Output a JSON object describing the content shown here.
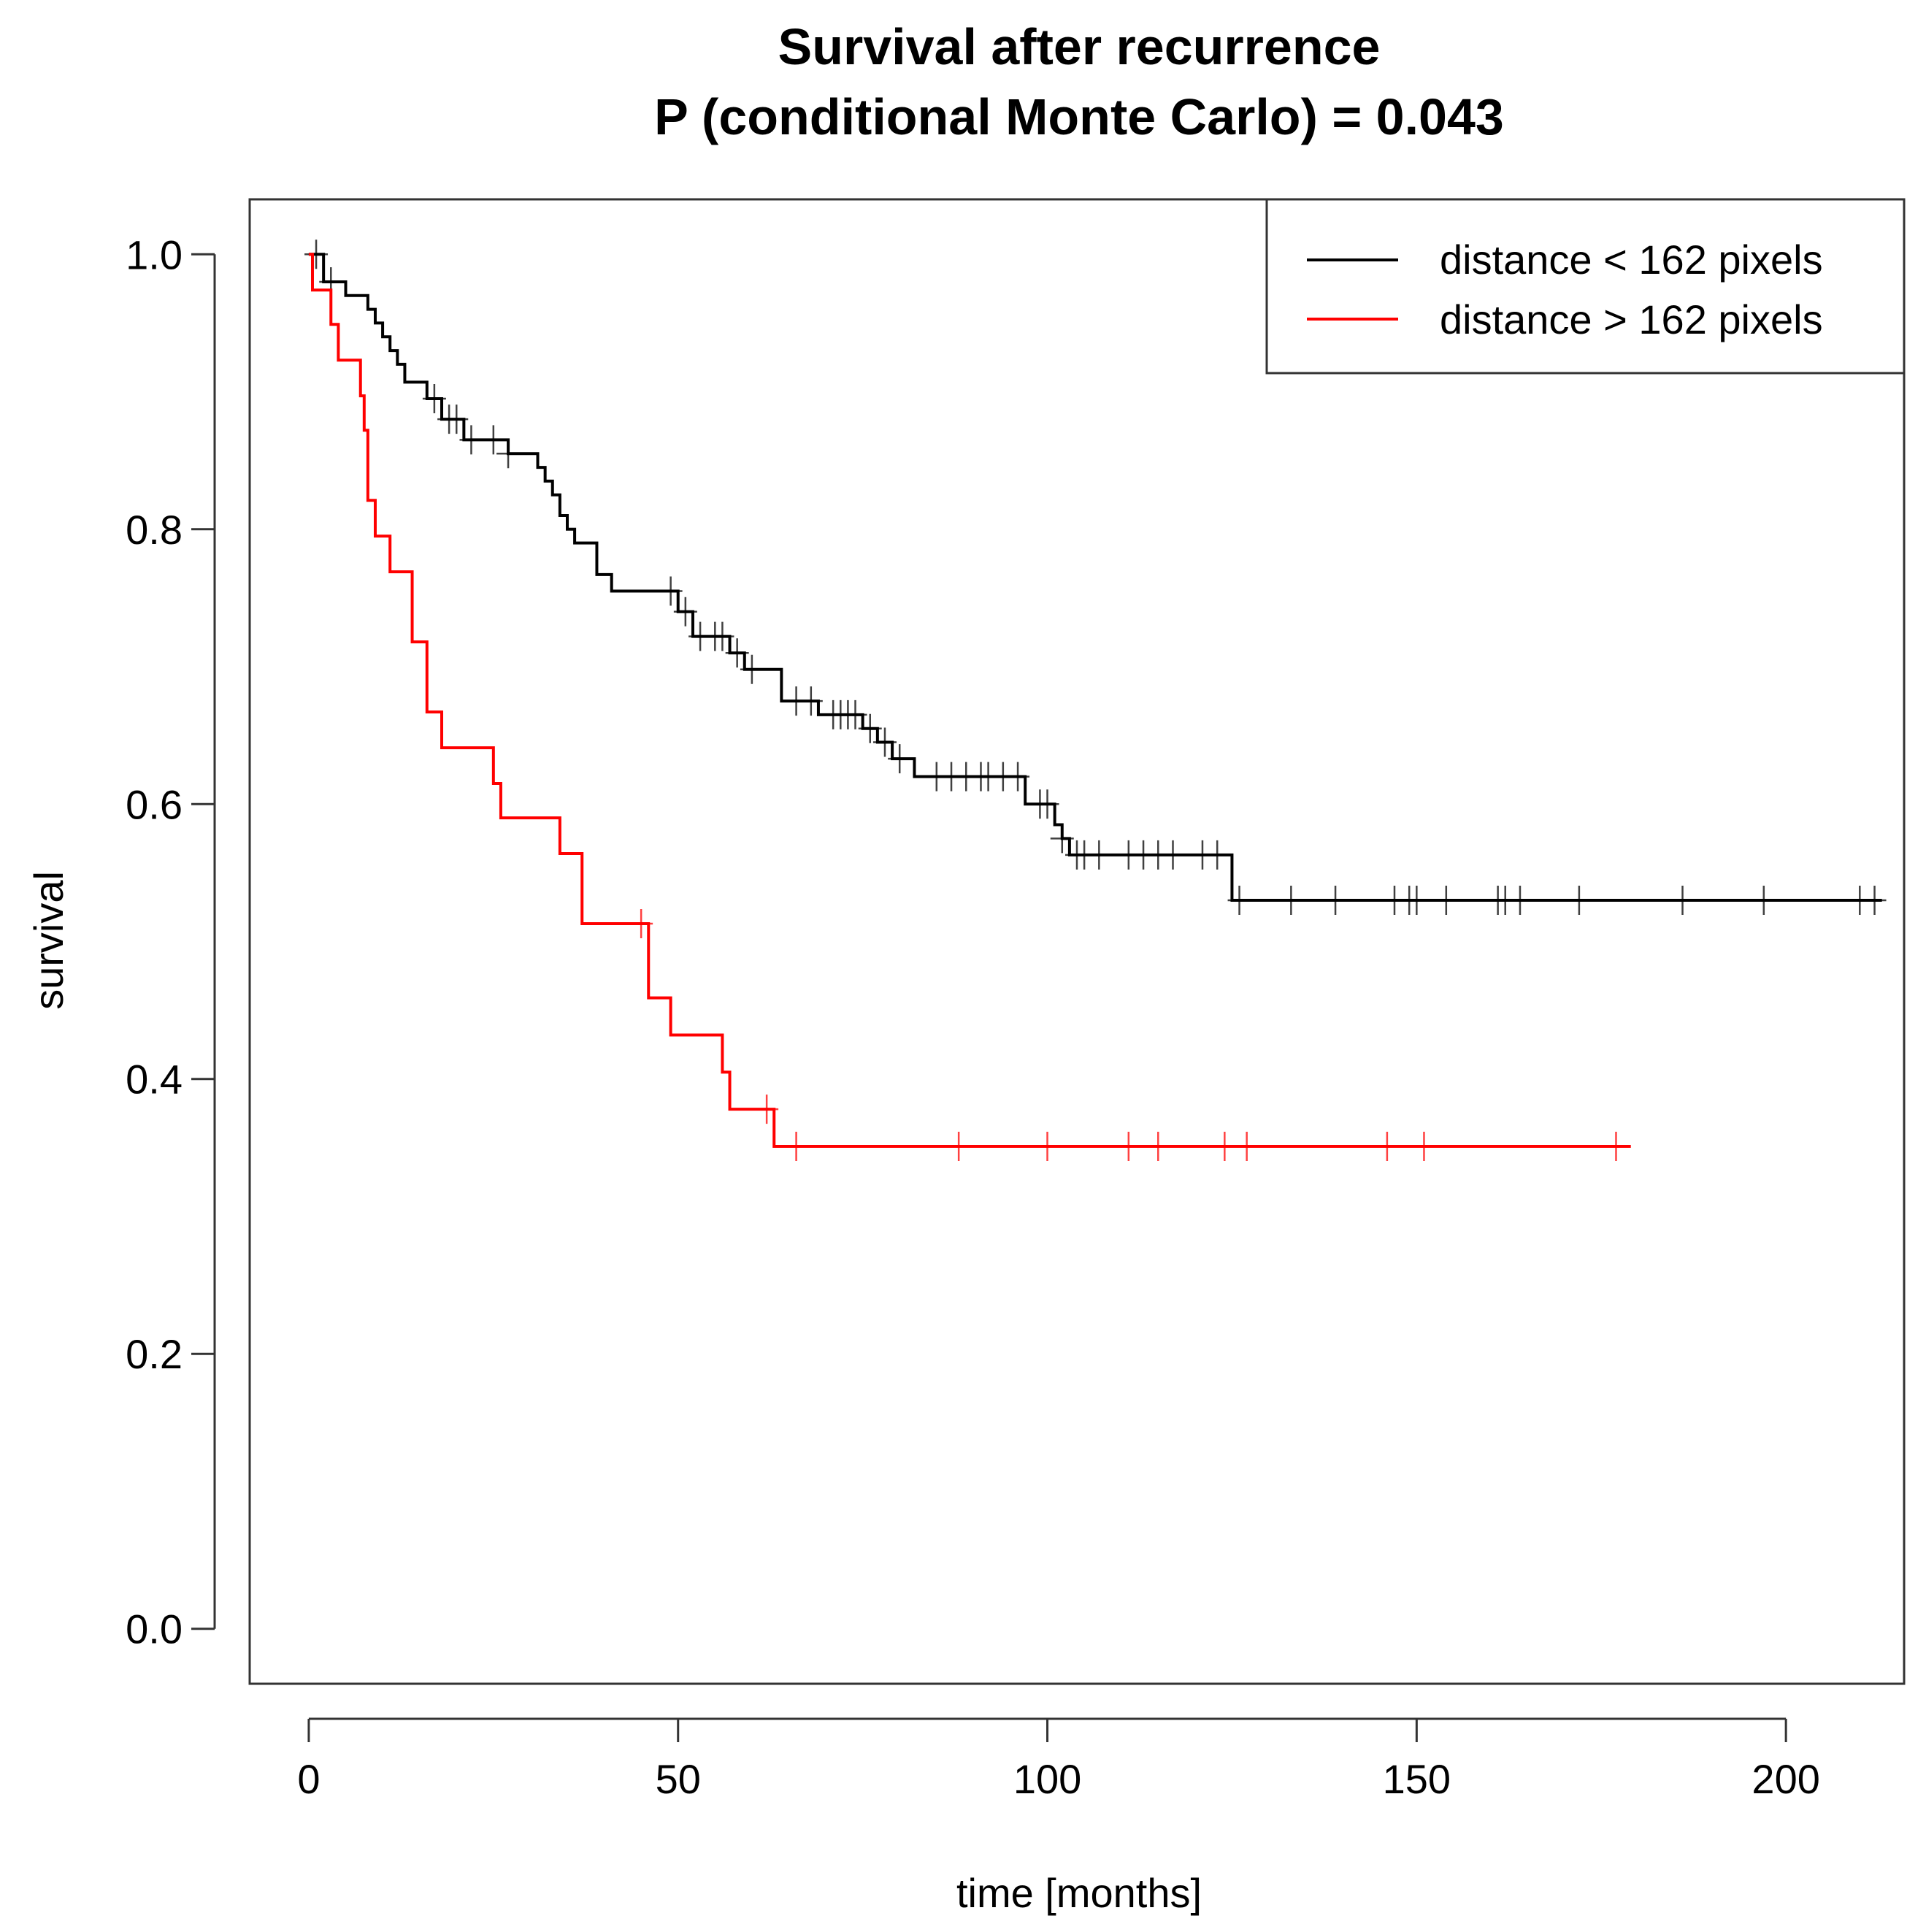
{
  "chart_data": {
    "type": "line",
    "subtype": "kaplan-meier step",
    "title": "Survival after recurrence",
    "subtitle": "P (conditional Monte Carlo) = 0.043",
    "xlabel": "time [months]",
    "ylabel": "survival",
    "xlim": [
      -8,
      216
    ],
    "ylim": [
      -0.04,
      1.04
    ],
    "x_ticks": [
      0,
      50,
      100,
      150,
      200
    ],
    "x_tick_labels": [
      "0",
      "50",
      "100",
      "150",
      "200"
    ],
    "y_ticks": [
      0.0,
      0.2,
      0.4,
      0.6,
      0.8,
      1.0
    ],
    "y_tick_labels": [
      "0.0",
      "0.2",
      "0.4",
      "0.6",
      "0.8",
      "1.0"
    ],
    "grid": false,
    "legend_position": "top-right",
    "series": [
      {
        "name": "distance < 162 pixels",
        "color": "#000000",
        "steps": [
          [
            0,
            1.0
          ],
          [
            2,
            0.98
          ],
          [
            5,
            0.97
          ],
          [
            8,
            0.96
          ],
          [
            9,
            0.95
          ],
          [
            10,
            0.94
          ],
          [
            11,
            0.93
          ],
          [
            12,
            0.92
          ],
          [
            13,
            0.907
          ],
          [
            16,
            0.895
          ],
          [
            18,
            0.88
          ],
          [
            21,
            0.865
          ],
          [
            27,
            0.855
          ],
          [
            31,
            0.845
          ],
          [
            32,
            0.835
          ],
          [
            33,
            0.825
          ],
          [
            34,
            0.81
          ],
          [
            35,
            0.8
          ],
          [
            36,
            0.79
          ],
          [
            39,
            0.767
          ],
          [
            41,
            0.755
          ],
          [
            50,
            0.74
          ],
          [
            52,
            0.722
          ],
          [
            57,
            0.71
          ],
          [
            59,
            0.698
          ],
          [
            64,
            0.675
          ],
          [
            69,
            0.665
          ],
          [
            75,
            0.655
          ],
          [
            77,
            0.645
          ],
          [
            79,
            0.633
          ],
          [
            82,
            0.62
          ],
          [
            97,
            0.6
          ],
          [
            101,
            0.585
          ],
          [
            102,
            0.575
          ],
          [
            103,
            0.563
          ],
          [
            125,
            0.53
          ]
        ],
        "end_time": 213,
        "censor_times": [
          1,
          3,
          17,
          19,
          20,
          22,
          25,
          27,
          49,
          51,
          53,
          55,
          56,
          58,
          60,
          66,
          68,
          71,
          72,
          73,
          74,
          76,
          78,
          80,
          85,
          87,
          89,
          91,
          92,
          94,
          96,
          99,
          100,
          102,
          104,
          105,
          107,
          111,
          113,
          115,
          117,
          121,
          123,
          126,
          133,
          139,
          147,
          149,
          150,
          154,
          161,
          162,
          164,
          172,
          186,
          197,
          210,
          212
        ]
      },
      {
        "name": "distance > 162 pixels",
        "color": "#ff0000",
        "steps": [
          [
            0,
            1.0
          ],
          [
            0.5,
            0.974
          ],
          [
            3,
            0.949
          ],
          [
            4,
            0.923
          ],
          [
            7,
            0.897
          ],
          [
            7.5,
            0.872
          ],
          [
            8,
            0.821
          ],
          [
            9,
            0.795
          ],
          [
            11,
            0.769
          ],
          [
            14,
            0.718
          ],
          [
            16,
            0.667
          ],
          [
            18,
            0.641
          ],
          [
            25,
            0.615
          ],
          [
            26,
            0.59
          ],
          [
            34,
            0.564
          ],
          [
            37,
            0.513
          ],
          [
            46,
            0.459
          ],
          [
            49,
            0.432
          ],
          [
            56,
            0.405
          ],
          [
            57,
            0.378
          ],
          [
            63,
            0.351
          ]
        ],
        "end_time": 179,
        "censor_times": [
          45,
          62,
          66,
          88,
          100,
          111,
          115,
          124,
          127,
          146,
          151,
          177
        ]
      }
    ]
  }
}
